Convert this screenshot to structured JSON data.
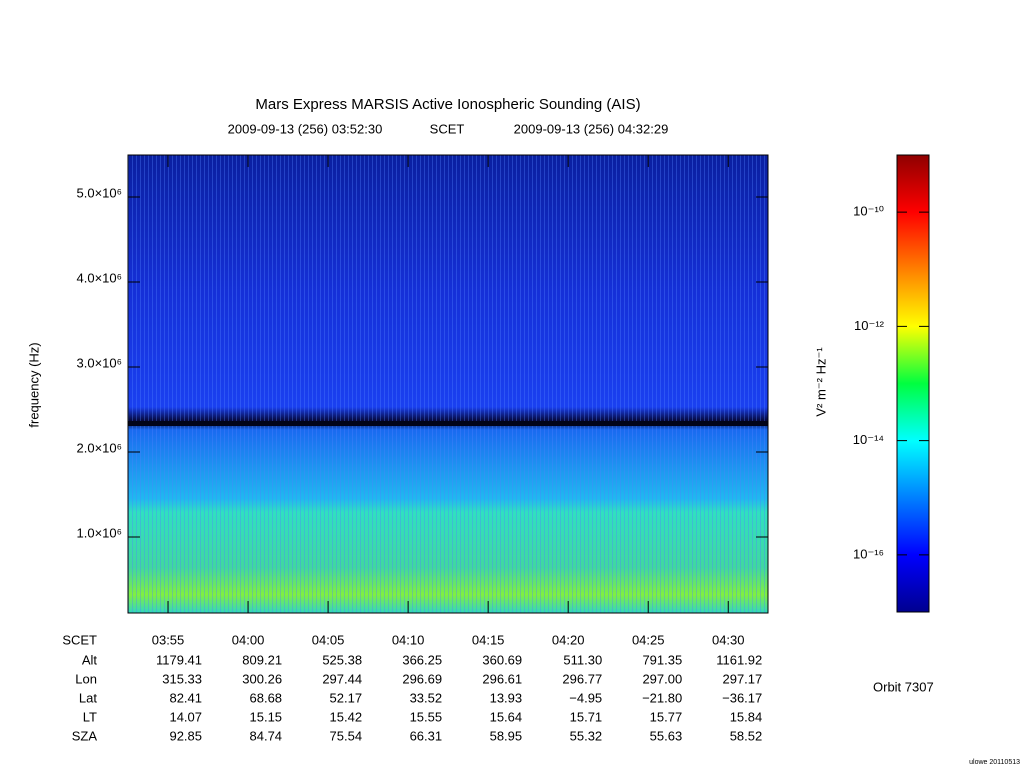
{
  "chart_data": {
    "type": "spectrogram",
    "title": "Mars Express MARSIS Active Ionospheric Sounding (AIS)",
    "start_time": "2009-09-13 (256) 03:52:30",
    "time_label": "SCET",
    "end_time": "2009-09-13 (256) 04:32:29",
    "ylabel": "frequency (Hz)",
    "xlim": [
      "03:52:30",
      "04:32:29"
    ],
    "xticks": [
      "03:55",
      "04:00",
      "04:05",
      "04:10",
      "04:15",
      "04:20",
      "04:25",
      "04:30"
    ],
    "ylim": [
      106000,
      5494000
    ],
    "yticks": [
      {
        "value": 1000000,
        "label": "1.0×10⁶"
      },
      {
        "value": 2000000,
        "label": "2.0×10⁶"
      },
      {
        "value": 3000000,
        "label": "3.0×10⁶"
      },
      {
        "value": 4000000,
        "label": "4.0×10⁶"
      },
      {
        "value": 5000000,
        "label": "5.0×10⁶"
      }
    ],
    "colorbar": {
      "label": "V² m⁻² Hz⁻¹",
      "log_scale": true,
      "zlim": [
        1e-17,
        1e-09
      ],
      "ticks": [
        {
          "value": 1e-10,
          "label": "10⁻¹⁰"
        },
        {
          "value": 1e-12,
          "label": "10⁻¹²"
        },
        {
          "value": 1e-14,
          "label": "10⁻¹⁴"
        },
        {
          "value": 1e-16,
          "label": "10⁻¹⁶"
        }
      ]
    },
    "ephemeris": {
      "scet_label": "SCET",
      "rows": [
        {
          "name": "Alt",
          "values": [
            "1179.41",
            "809.21",
            "525.38",
            "366.25",
            "360.69",
            "511.30",
            "791.35",
            "1161.92"
          ]
        },
        {
          "name": "Lon",
          "values": [
            "315.33",
            "300.26",
            "297.44",
            "296.69",
            "296.61",
            "296.77",
            "297.00",
            "297.17"
          ]
        },
        {
          "name": "Lat",
          "values": [
            "82.41",
            "68.68",
            "52.17",
            "33.52",
            "13.93",
            "−4.95",
            "−21.80",
            "−36.17"
          ]
        },
        {
          "name": "LT",
          "values": [
            "14.07",
            "15.15",
            "15.42",
            "15.55",
            "15.64",
            "15.71",
            "15.77",
            "15.84"
          ]
        },
        {
          "name": "SZA",
          "values": [
            "92.85",
            "84.74",
            "75.54",
            "66.31",
            "58.95",
            "55.32",
            "55.63",
            "58.52"
          ]
        }
      ]
    },
    "orbit": "Orbit 7307",
    "credit": "ulowe 20110513"
  }
}
